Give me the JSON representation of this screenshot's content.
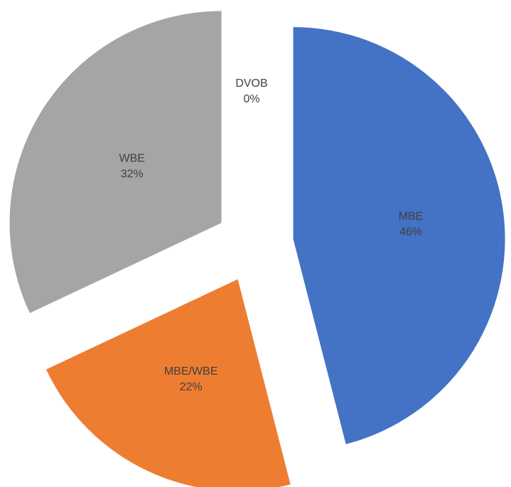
{
  "chart_data": {
    "type": "pie",
    "title": "",
    "exploded": true,
    "slices": [
      {
        "name": "MBE",
        "percent_label": "46%",
        "value": 46,
        "color": "#4472C4"
      },
      {
        "name": "MBE/WBE",
        "percent_label": "22%",
        "value": 22,
        "color": "#ED7D31"
      },
      {
        "name": "WBE",
        "percent_label": "32%",
        "value": 32,
        "color": "#A5A5A5"
      },
      {
        "name": "DVOB",
        "percent_label": "0%",
        "value": 0,
        "color": "#FFC000"
      }
    ]
  }
}
